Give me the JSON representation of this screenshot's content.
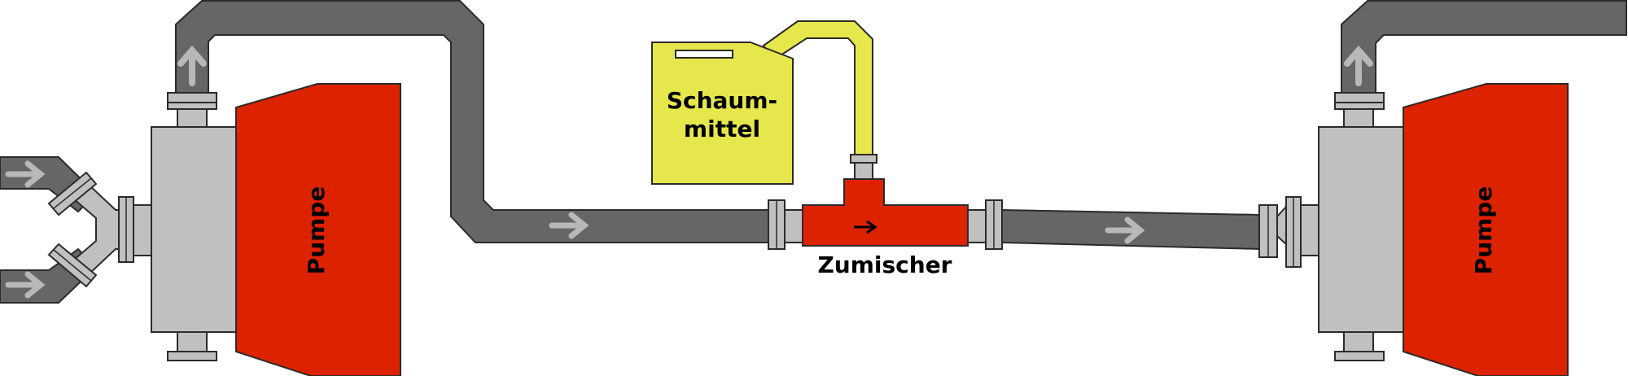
{
  "labels": {
    "pump_left": "Pumpe",
    "pump_right": "Pumpe",
    "foam_line1": "Schaum-",
    "foam_line2": "mittel",
    "mixer": "Zumischer"
  },
  "colors": {
    "pipe": "#666666",
    "pipe_stroke": "#2b2b2b",
    "fitting": "#c0c0c0",
    "pump": "#dd2200",
    "mixer": "#dd2200",
    "foam_canister": "#e6e64d",
    "flow_arrow": "#b8b8b8"
  }
}
